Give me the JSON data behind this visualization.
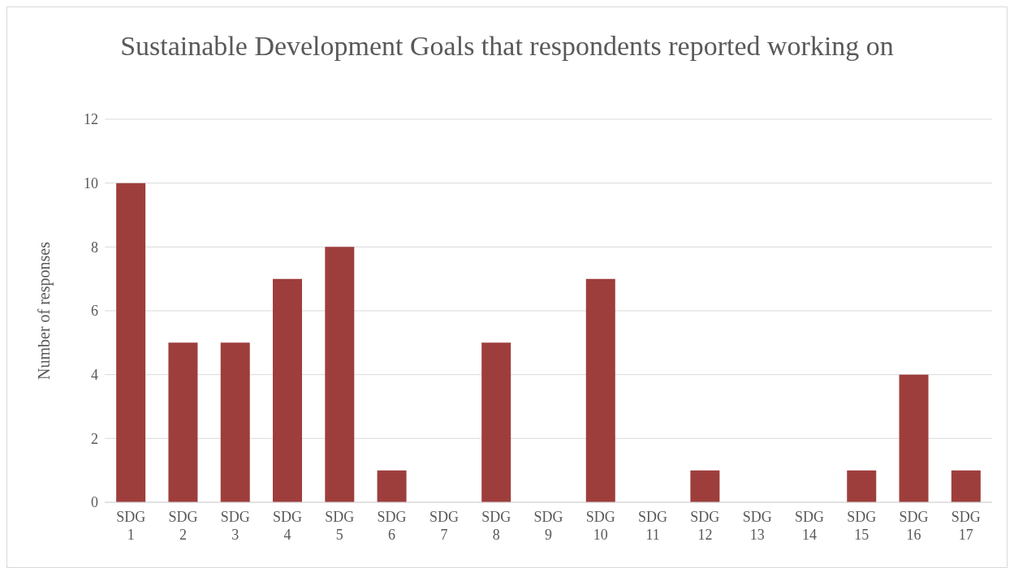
{
  "chart_data": {
    "type": "bar",
    "title": "Sustainable Development Goals that respondents reported working on",
    "ylabel": "Number of responses",
    "categories": [
      "SDG 1",
      "SDG 2",
      "SDG 3",
      "SDG 4",
      "SDG 5",
      "SDG 6",
      "SDG 7",
      "SDG 8",
      "SDG 9",
      "SDG 10",
      "SDG 11",
      "SDG 12",
      "SDG 13",
      "SDG 14",
      "SDG 15",
      "SDG 16",
      "SDG 17"
    ],
    "values": [
      10,
      5,
      5,
      7,
      8,
      1,
      0,
      5,
      0,
      7,
      0,
      1,
      0,
      0,
      1,
      4,
      1
    ],
    "color": "#9e3e3c",
    "ylim": [
      0,
      12
    ],
    "yticks": [
      0,
      2,
      4,
      6,
      8,
      10,
      12
    ],
    "grid": "y",
    "legend": false
  }
}
